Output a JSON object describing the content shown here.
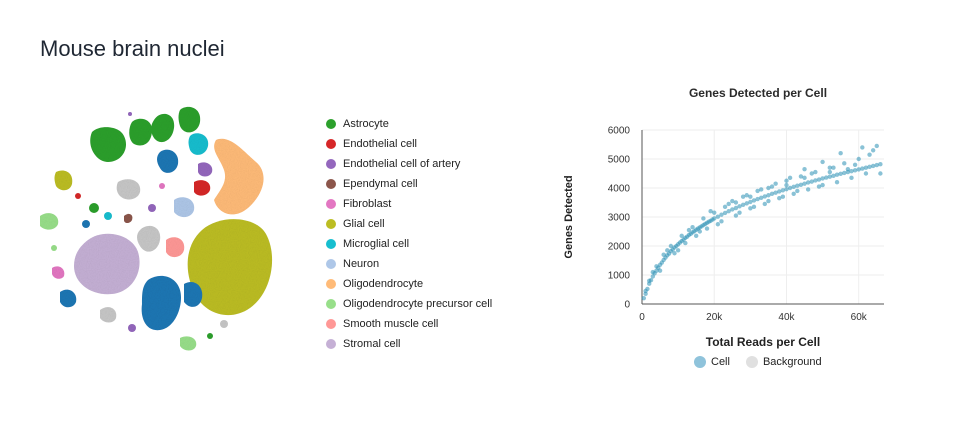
{
  "page": {
    "title": "Mouse brain nuclei"
  },
  "tsne": {
    "legend": [
      {
        "label": "Astrocyte",
        "color": "#2ca02c"
      },
      {
        "label": "Endothelial cell",
        "color": "#d62728"
      },
      {
        "label": "Endothelial cell of artery",
        "color": "#9467bd"
      },
      {
        "label": "Ependymal cell",
        "color": "#8c564b"
      },
      {
        "label": "Fibroblast",
        "color": "#e377c2"
      },
      {
        "label": "Glial cell",
        "color": "#bcbd22"
      },
      {
        "label": "Microglial cell",
        "color": "#17becf"
      },
      {
        "label": "Neuron",
        "color": "#aec7e8"
      },
      {
        "label": "Oligodendrocyte",
        "color": "#ffbb78"
      },
      {
        "label": "Oligodendrocyte precursor cell",
        "color": "#98df8a"
      },
      {
        "label": "Smooth muscle cell",
        "color": "#ff9896"
      },
      {
        "label": "Stromal cell",
        "color": "#c5b0d5"
      }
    ],
    "extra_colors": {
      "dark_blue": "#1f77b4",
      "gray": "#c7c7c7"
    }
  },
  "chart_data": {
    "type": "scatter",
    "title": "Genes Detected per Cell",
    "xlabel": "Total Reads per Cell",
    "ylabel": "Genes Detected",
    "xlim": [
      0,
      67000
    ],
    "ylim": [
      0,
      6000
    ],
    "x_ticks": [
      0,
      20000,
      40000,
      60000
    ],
    "x_tick_labels": [
      "0",
      "20k",
      "40k",
      "60k"
    ],
    "y_ticks": [
      0,
      1000,
      2000,
      3000,
      4000,
      5000,
      6000
    ],
    "y_tick_labels": [
      "0",
      "1000",
      "2000",
      "3000",
      "4000",
      "5000",
      "6000"
    ],
    "grid": true,
    "legend_position": "bottom",
    "series": [
      {
        "name": "Cell",
        "color": "#2a8fb5",
        "points": [
          [
            500,
            200
          ],
          [
            1000,
            350
          ],
          [
            1500,
            520
          ],
          [
            2000,
            700
          ],
          [
            2500,
            820
          ],
          [
            3000,
            950
          ],
          [
            3500,
            1060
          ],
          [
            4000,
            1150
          ],
          [
            4500,
            1250
          ],
          [
            5000,
            1350
          ],
          [
            5500,
            1430
          ],
          [
            6000,
            1520
          ],
          [
            6500,
            1600
          ],
          [
            7000,
            1680
          ],
          [
            7500,
            1740
          ],
          [
            8000,
            1820
          ],
          [
            8500,
            1880
          ],
          [
            9000,
            1950
          ],
          [
            9500,
            2000
          ],
          [
            10000,
            2060
          ],
          [
            10500,
            2120
          ],
          [
            11000,
            2170
          ],
          [
            11500,
            2220
          ],
          [
            12000,
            2280
          ],
          [
            12500,
            2320
          ],
          [
            13000,
            2380
          ],
          [
            13500,
            2420
          ],
          [
            14000,
            2470
          ],
          [
            14500,
            2510
          ],
          [
            15000,
            2560
          ],
          [
            15500,
            2600
          ],
          [
            16000,
            2640
          ],
          [
            16500,
            2680
          ],
          [
            17000,
            2720
          ],
          [
            17500,
            2760
          ],
          [
            18000,
            2800
          ],
          [
            18500,
            2840
          ],
          [
            19000,
            2870
          ],
          [
            19500,
            2910
          ],
          [
            20000,
            2950
          ],
          [
            21000,
            3010
          ],
          [
            22000,
            3080
          ],
          [
            23000,
            3140
          ],
          [
            24000,
            3200
          ],
          [
            25000,
            3260
          ],
          [
            26000,
            3310
          ],
          [
            27000,
            3370
          ],
          [
            28000,
            3420
          ],
          [
            29000,
            3470
          ],
          [
            30000,
            3520
          ],
          [
            31000,
            3570
          ],
          [
            32000,
            3620
          ],
          [
            33000,
            3660
          ],
          [
            34000,
            3710
          ],
          [
            35000,
            3750
          ],
          [
            36000,
            3800
          ],
          [
            37000,
            3840
          ],
          [
            38000,
            3880
          ],
          [
            39000,
            3920
          ],
          [
            40000,
            3960
          ],
          [
            41000,
            4000
          ],
          [
            42000,
            4040
          ],
          [
            43000,
            4080
          ],
          [
            44000,
            4110
          ],
          [
            45000,
            4150
          ],
          [
            46000,
            4190
          ],
          [
            47000,
            4220
          ],
          [
            48000,
            4260
          ],
          [
            49000,
            4290
          ],
          [
            50000,
            4330
          ],
          [
            51000,
            4360
          ],
          [
            52000,
            4390
          ],
          [
            53000,
            4420
          ],
          [
            54000,
            4460
          ],
          [
            55000,
            4490
          ],
          [
            56000,
            4520
          ],
          [
            57000,
            4550
          ],
          [
            58000,
            4580
          ],
          [
            59000,
            4610
          ],
          [
            60000,
            4640
          ],
          [
            61000,
            4670
          ],
          [
            62000,
            4700
          ],
          [
            63000,
            4730
          ],
          [
            64000,
            4760
          ],
          [
            65000,
            4790
          ],
          [
            66000,
            4820
          ],
          [
            3000,
            1100
          ],
          [
            5000,
            1150
          ],
          [
            7000,
            1850
          ],
          [
            9000,
            1750
          ],
          [
            11000,
            2350
          ],
          [
            12000,
            2100
          ],
          [
            14000,
            2650
          ],
          [
            15000,
            2350
          ],
          [
            17000,
            2950
          ],
          [
            18000,
            2600
          ],
          [
            20000,
            3150
          ],
          [
            22000,
            2850
          ],
          [
            24000,
            3450
          ],
          [
            26000,
            3050
          ],
          [
            28000,
            3700
          ],
          [
            30000,
            3300
          ],
          [
            32000,
            3900
          ],
          [
            34000,
            3450
          ],
          [
            36000,
            4050
          ],
          [
            38000,
            3650
          ],
          [
            40000,
            4250
          ],
          [
            42000,
            3800
          ],
          [
            44000,
            4400
          ],
          [
            46000,
            3950
          ],
          [
            48000,
            4550
          ],
          [
            50000,
            4100
          ],
          [
            52000,
            4700
          ],
          [
            54000,
            4200
          ],
          [
            56000,
            4850
          ],
          [
            58000,
            4350
          ],
          [
            60000,
            5000
          ],
          [
            62000,
            4500
          ],
          [
            63000,
            5150
          ],
          [
            64000,
            5300
          ],
          [
            65000,
            5450
          ],
          [
            55000,
            5200
          ],
          [
            50000,
            4900
          ],
          [
            45000,
            4650
          ],
          [
            66000,
            4500
          ],
          [
            61000,
            5400
          ],
          [
            19000,
            3200
          ],
          [
            21000,
            2750
          ],
          [
            25000,
            3550
          ],
          [
            27000,
            3150
          ],
          [
            29000,
            3750
          ],
          [
            31000,
            3350
          ],
          [
            33000,
            3950
          ],
          [
            35000,
            3550
          ],
          [
            37000,
            4150
          ],
          [
            39000,
            3700
          ],
          [
            41000,
            4350
          ],
          [
            43000,
            3900
          ],
          [
            47000,
            4500
          ],
          [
            49000,
            4050
          ],
          [
            53000,
            4700
          ],
          [
            57000,
            4650
          ],
          [
            8000,
            2000
          ],
          [
            10000,
            1850
          ],
          [
            13000,
            2550
          ],
          [
            16000,
            2500
          ],
          [
            6000,
            1700
          ],
          [
            4000,
            1300
          ],
          [
            2000,
            800
          ],
          [
            1000,
            450
          ],
          [
            23000,
            3350
          ],
          [
            26000,
            3500
          ],
          [
            30000,
            3700
          ],
          [
            35000,
            4000
          ],
          [
            40000,
            4100
          ],
          [
            45000,
            4350
          ],
          [
            52000,
            4550
          ],
          [
            59000,
            4800
          ]
        ]
      },
      {
        "name": "Background",
        "color": "#e0e0e0",
        "points": []
      }
    ]
  }
}
